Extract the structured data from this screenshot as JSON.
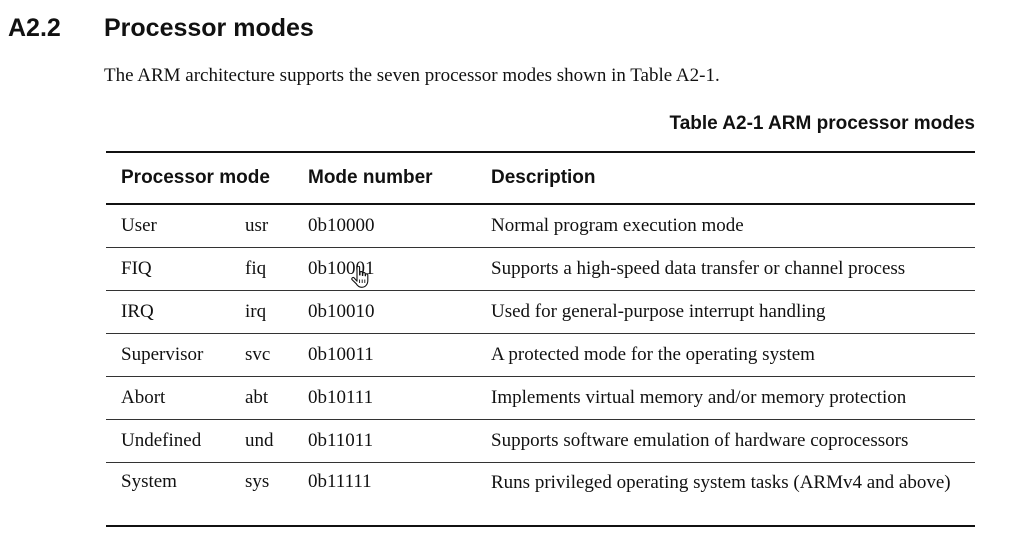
{
  "section": {
    "number": "A2.2",
    "title": "Processor modes"
  },
  "intro": "The ARM architecture supports the seven processor modes shown in Table A2-1.",
  "table": {
    "caption": "Table A2-1 ARM processor modes",
    "headers": {
      "processor_mode": "Processor mode",
      "mode_number": "Mode number",
      "description": "Description"
    },
    "rows": [
      {
        "mode": "User",
        "abbr": "usr",
        "number": "0b10000",
        "description": "Normal program execution mode"
      },
      {
        "mode": "FIQ",
        "abbr": "fiq",
        "number": "0b10001",
        "description": "Supports a high-speed data transfer or channel process"
      },
      {
        "mode": "IRQ",
        "abbr": "irq",
        "number": "0b10010",
        "description": "Used for general-purpose interrupt handling"
      },
      {
        "mode": "Supervisor",
        "abbr": "svc",
        "number": "0b10011",
        "description": "A protected mode for the operating system"
      },
      {
        "mode": "Abort",
        "abbr": "abt",
        "number": "0b10111",
        "description": "Implements virtual memory and/or memory protection"
      },
      {
        "mode": "Undefined",
        "abbr": "und",
        "number": "0b11011",
        "description": "Supports software emulation of hardware coprocessors"
      },
      {
        "mode": "System",
        "abbr": "sys",
        "number": "0b11111",
        "description": "Runs privileged operating system tasks (ARMv4 and above)"
      }
    ]
  },
  "cursor": {
    "icon": "hand-pointer-icon"
  }
}
